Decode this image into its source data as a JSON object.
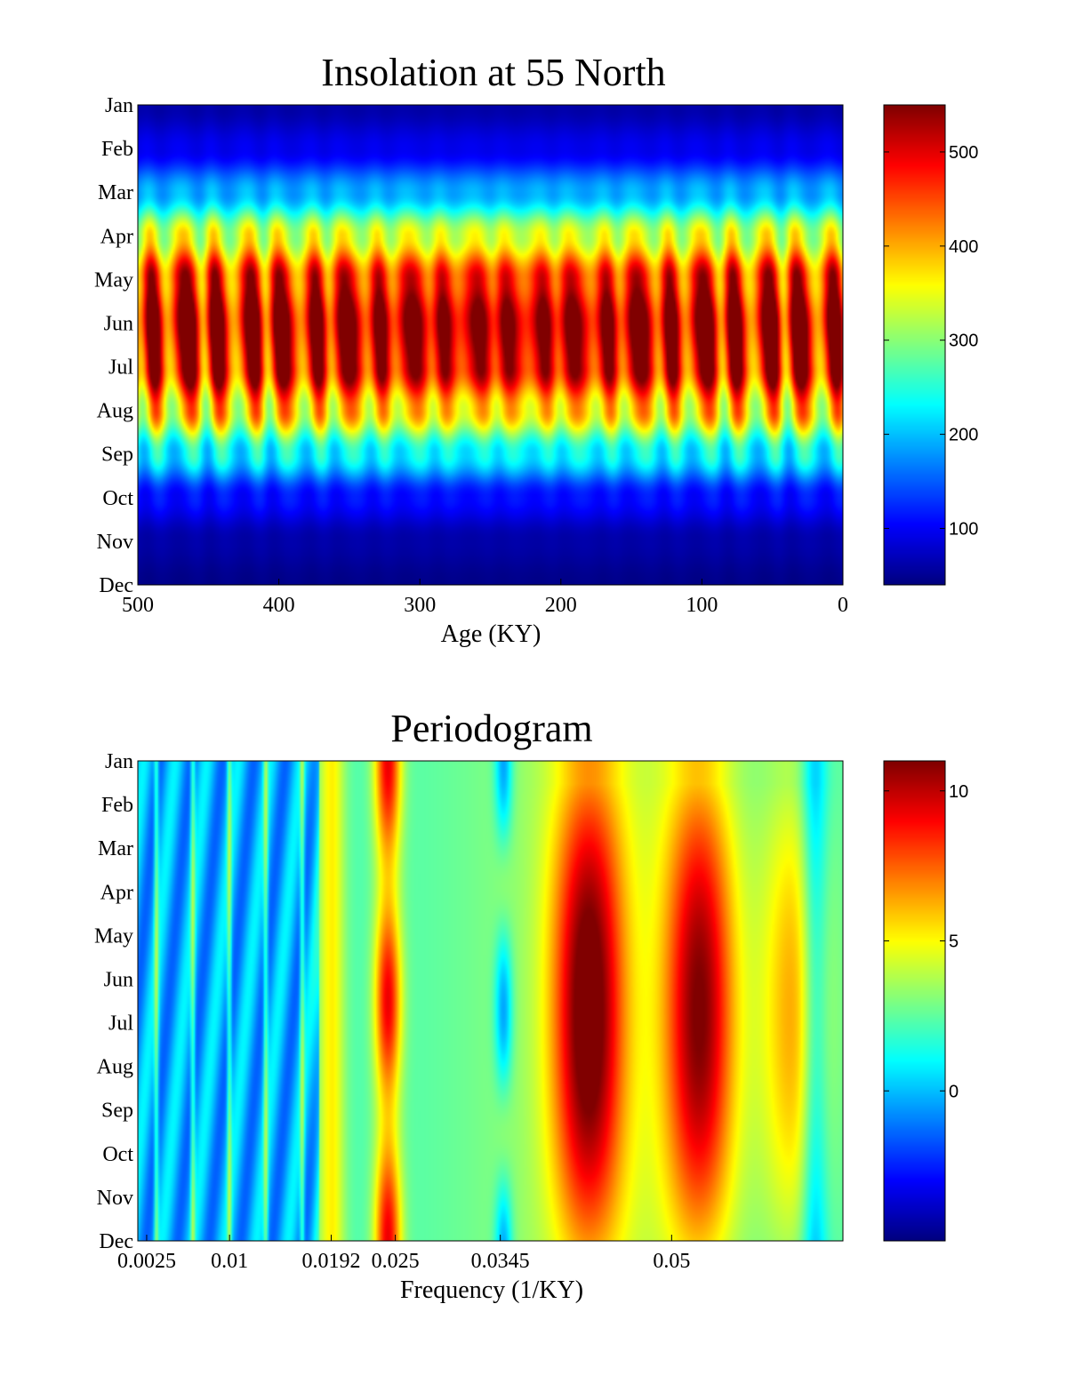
{
  "chart_data": [
    {
      "type": "heatmap",
      "title": "Insolation at 55 North",
      "xlabel": "Age (KY)",
      "ylabel": "",
      "x_ticks": [
        500,
        400,
        300,
        200,
        100,
        0
      ],
      "xlim": [
        500,
        0
      ],
      "y_categories": [
        "Jan",
        "Feb",
        "Mar",
        "Apr",
        "May",
        "Jun",
        "Jul",
        "Aug",
        "Sep",
        "Oct",
        "Nov",
        "Dec"
      ],
      "colorbar": {
        "min": 40,
        "max": 550,
        "ticks": [
          100,
          200,
          300,
          400,
          500
        ],
        "colormap": "jet"
      },
      "monthly_mean": [
        60,
        95,
        190,
        340,
        470,
        530,
        500,
        380,
        230,
        110,
        60,
        45
      ],
      "variation": "approximately 23 KY oscillation, strongest in summer months",
      "grid": false
    },
    {
      "type": "heatmap",
      "title": "Periodogram",
      "xlabel": "Frequency (1/KY)",
      "ylabel": "",
      "x_tick_labels": [
        "0.0025",
        "0.01",
        "0.0192",
        "0.025",
        "0.0345",
        "0.05"
      ],
      "x_ticks": [
        0.0025,
        0.01,
        0.0192,
        0.025,
        0.0345,
        0.05
      ],
      "xlim": [
        0.0017,
        0.0655
      ],
      "y_categories": [
        "Jan",
        "Feb",
        "Mar",
        "Apr",
        "May",
        "Jun",
        "Jul",
        "Aug",
        "Sep",
        "Oct",
        "Nov",
        "Dec"
      ],
      "colorbar": {
        "min": -5,
        "max": 11,
        "ticks": [
          0,
          5,
          10
        ],
        "colormap": "jet"
      },
      "peaks": [
        {
          "freq": 0.0192,
          "level": 5
        },
        {
          "freq": 0.0243,
          "level": 9
        },
        {
          "freq": 0.0425,
          "level": 10.5
        },
        {
          "freq": 0.0526,
          "level": 10
        },
        {
          "freq": 0.0612,
          "level": 6
        }
      ],
      "grid": false
    }
  ],
  "colors": {
    "background": "#ffffff",
    "axes": "#000000"
  }
}
